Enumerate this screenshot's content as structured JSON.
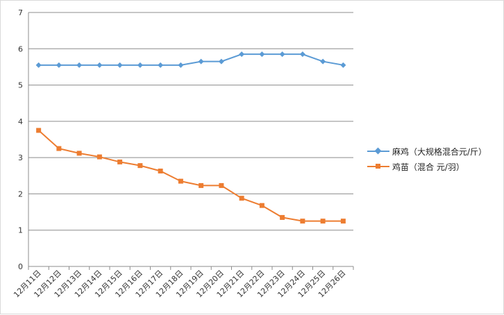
{
  "chart_data": {
    "type": "line",
    "categories": [
      "12月11日",
      "12月12日",
      "12月13日",
      "12月14日",
      "12月15日",
      "12月16日",
      "12月17日",
      "12月18日",
      "12月19日",
      "12月20日",
      "12月21日",
      "12月22日",
      "12月23日",
      "12月24日",
      "12月25日",
      "12月26日"
    ],
    "series": [
      {
        "name": "麻鸡（大规格混合元/斤）",
        "color": "#5b9bd5",
        "marker": "diamond",
        "values": [
          5.55,
          5.55,
          5.55,
          5.55,
          5.55,
          5.55,
          5.55,
          5.55,
          5.65,
          5.65,
          5.85,
          5.85,
          5.85,
          5.85,
          5.65,
          5.55
        ]
      },
      {
        "name": "鸡苗（混合 元/羽）",
        "color": "#ed7d31",
        "marker": "square",
        "values": [
          3.75,
          3.25,
          3.12,
          3.02,
          2.88,
          2.78,
          2.63,
          2.35,
          2.23,
          2.23,
          1.88,
          1.68,
          1.35,
          1.25,
          1.25,
          1.25
        ]
      }
    ],
    "ylim": [
      0,
      7
    ],
    "yticks": [
      "0",
      "1",
      "2",
      "3",
      "4",
      "5",
      "6",
      "7"
    ],
    "grid": true,
    "legend": "right"
  }
}
